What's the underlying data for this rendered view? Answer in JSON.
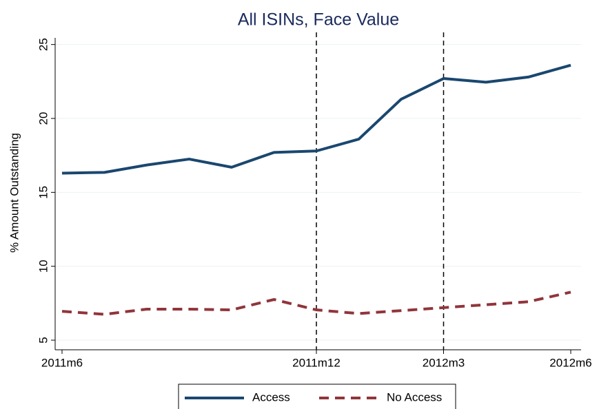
{
  "chart_data": {
    "type": "line",
    "title": "All ISINs, Face Value",
    "y_label": "% Amount Outstanding",
    "categories": [
      "2011m6",
      null,
      null,
      null,
      null,
      null,
      "2011m12",
      null,
      null,
      "2012m3",
      null,
      null,
      "2012m6"
    ],
    "series": [
      {
        "name": "Access",
        "color": "#1a476f",
        "dash": false,
        "values": [
          16.3,
          16.35,
          16.85,
          17.25,
          16.7,
          17.7,
          17.8,
          18.6,
          21.3,
          22.7,
          22.45,
          22.8,
          23.6
        ]
      },
      {
        "name": "No Access",
        "color": "#90353b",
        "dash": true,
        "values": [
          6.95,
          6.75,
          7.1,
          7.1,
          7.05,
          7.75,
          7.05,
          6.8,
          7.0,
          7.2,
          7.4,
          7.6,
          8.25
        ]
      }
    ],
    "vlines": [
      "2011m12",
      "2012m3"
    ],
    "ylim": [
      4.35,
      25.45
    ],
    "yticks": [
      5,
      10,
      15,
      20,
      25
    ],
    "grid": true
  }
}
